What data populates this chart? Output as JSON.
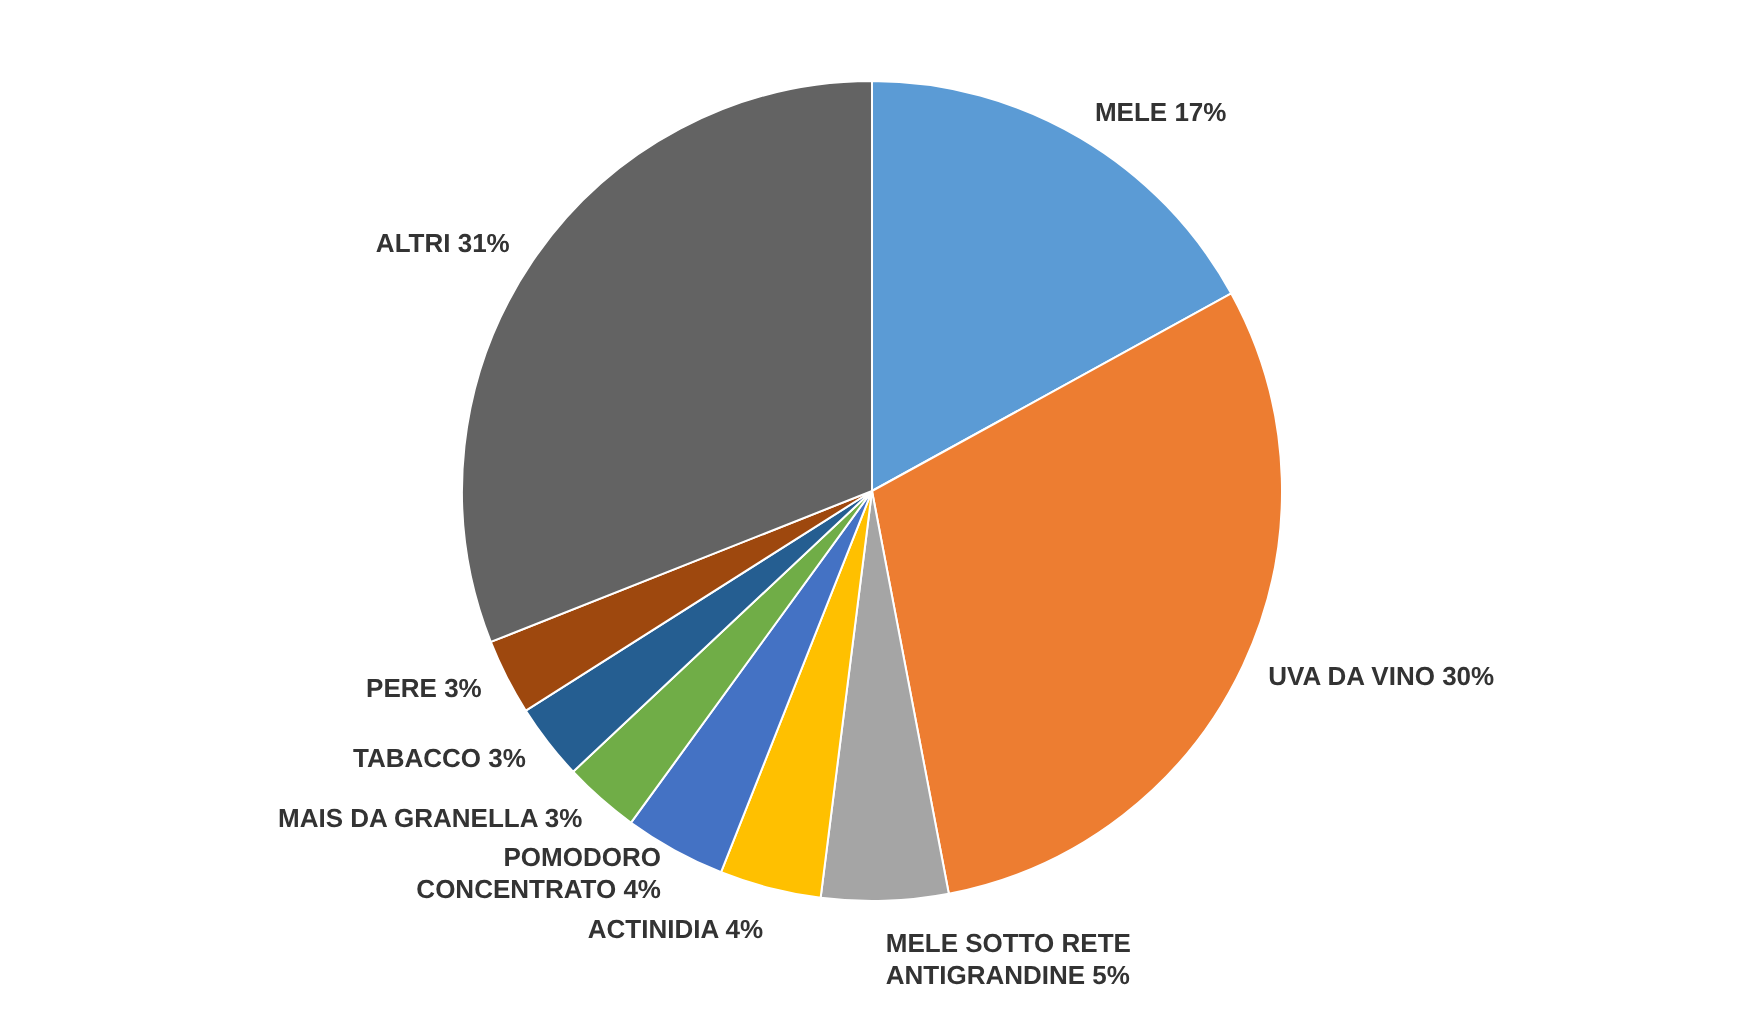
{
  "chart_data": {
    "type": "pie",
    "categories": [
      "MELE",
      "UVA DA VINO",
      "MELE SOTTO RETE ANTIGRANDINE",
      "ACTINIDIA",
      "POMODORO CONCENTRATO",
      "MAIS DA GRANELLA",
      "TABACCO",
      "PERE",
      "ALTRI"
    ],
    "values": [
      17,
      30,
      5,
      4,
      4,
      3,
      3,
      3,
      31
    ],
    "value_labels": [
      "17%",
      "30%",
      "5%",
      "4%",
      "4%",
      "3%",
      "3%",
      "3%",
      "31%"
    ],
    "colors": [
      "#5b9bd5",
      "#ed7d31",
      "#a5a5a5",
      "#ffc000",
      "#4472c4",
      "#70ad47",
      "#255e91",
      "#9e480e",
      "#636363"
    ],
    "legend": false
  }
}
